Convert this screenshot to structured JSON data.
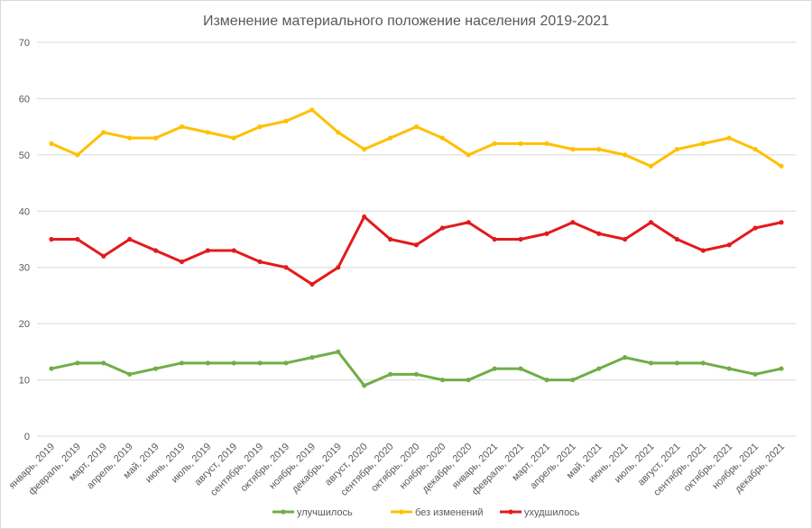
{
  "chart_data": {
    "type": "line",
    "title": "Изменение материального положение населения 2019-2021",
    "xlabel": "",
    "ylabel": "",
    "ylim": [
      0,
      70
    ],
    "yticks": [
      0,
      10,
      20,
      30,
      40,
      50,
      60,
      70
    ],
    "grid": true,
    "legend_position": "bottom",
    "categories": [
      "январь, 2019",
      "февраль, 2019",
      "март, 2019",
      "апрель, 2019",
      "май, 2019",
      "июнь, 2019",
      "июль, 2019",
      "август, 2019",
      "сентябрь, 2019",
      "октябрь, 2019",
      "ноябрь, 2019",
      "декабрь, 2019",
      "август, 2020",
      "сентябрь, 2020",
      "октябрь, 2020",
      "ноябрь, 2020",
      "декабрь, 2020",
      "январь, 2021",
      "февраль, 2021",
      "март, 2021",
      "апрель, 2021",
      "май, 2021",
      "июнь, 2021",
      "июль, 2021",
      "август, 2021",
      "сентябрь, 2021",
      "октябрь, 2021",
      "ноябрь, 2021",
      "декабрь, 2021"
    ],
    "series": [
      {
        "name": "улучшилось",
        "color": "#70ad47",
        "values": [
          12,
          13,
          13,
          11,
          12,
          13,
          13,
          13,
          13,
          13,
          14,
          15,
          9,
          11,
          11,
          10,
          10,
          12,
          12,
          10,
          10,
          12,
          14,
          13,
          13,
          13,
          12,
          11,
          12
        ]
      },
      {
        "name": "без изменений",
        "color": "#ffc000",
        "values": [
          52,
          50,
          54,
          53,
          53,
          55,
          54,
          53,
          55,
          56,
          58,
          54,
          51,
          53,
          55,
          53,
          50,
          52,
          52,
          52,
          51,
          51,
          50,
          48,
          51,
          52,
          53,
          51,
          48
        ]
      },
      {
        "name": "ухудшилось",
        "color": "#e31a1c",
        "values": [
          35,
          35,
          32,
          35,
          33,
          31,
          33,
          33,
          31,
          30,
          27,
          30,
          39,
          35,
          34,
          37,
          38,
          35,
          35,
          36,
          38,
          36,
          35,
          38,
          35,
          33,
          34,
          37,
          38
        ]
      }
    ]
  }
}
